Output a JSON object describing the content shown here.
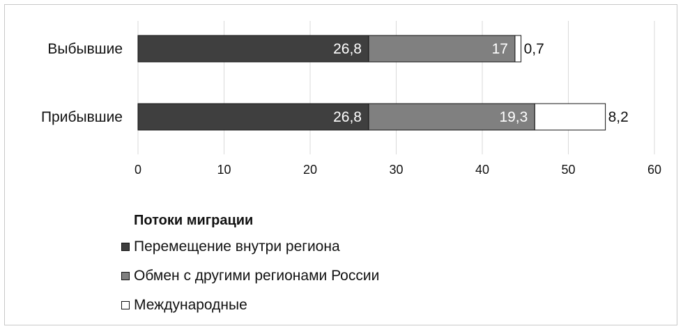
{
  "chart_data": {
    "type": "bar",
    "orientation": "horizontal",
    "stacked": true,
    "categories": [
      "Выбывшие",
      "Прибывшие"
    ],
    "series": [
      {
        "name": "Перемещение внутри региона",
        "values": [
          26.8,
          26.8
        ],
        "labels": [
          "26,8",
          "26,8"
        ],
        "color": "#3f3f3f"
      },
      {
        "name": "Обмен с другими регионами России",
        "values": [
          17,
          19.3
        ],
        "labels": [
          "17",
          "19,3"
        ],
        "color": "#808080"
      },
      {
        "name": "Международные",
        "values": [
          0.7,
          8.2
        ],
        "labels": [
          "0,7",
          "8,2"
        ],
        "color": "#ffffff"
      }
    ],
    "xlim": [
      0,
      60
    ],
    "xticks": [
      "0",
      "10",
      "20",
      "30",
      "40",
      "50",
      "60"
    ],
    "grid": true,
    "legend_title": "Потоки миграции",
    "legend_position": "bottom-left"
  }
}
